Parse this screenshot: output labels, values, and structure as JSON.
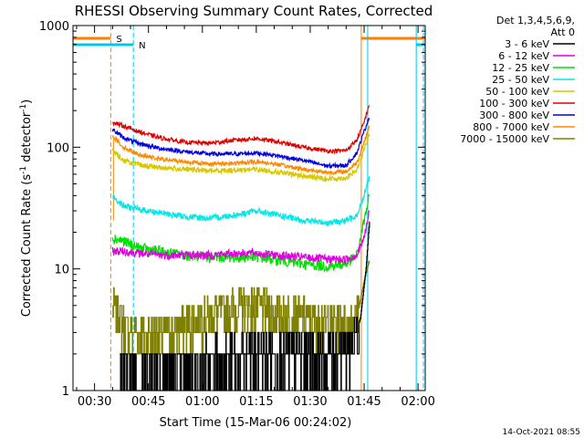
{
  "chart_data": {
    "type": "line",
    "title": "RHESSI Observing Summary Count Rates, Corrected",
    "xlabel": "Start Time (15-Mar-06 00:24:02)",
    "ylabel": "Corrected Count Rate (s",
    "ylabel_sup": "-1",
    "ylabel_tail": " detector",
    "ylabel_sup2": "-1",
    "ylabel_end": ")",
    "x_range_minutes": [
      24.0,
      122.0
    ],
    "x_ticks": [
      {
        "minute": 30,
        "label": "00:30"
      },
      {
        "minute": 45,
        "label": "00:45"
      },
      {
        "minute": 60,
        "label": "01:00"
      },
      {
        "minute": 75,
        "label": "01:15"
      },
      {
        "minute": 90,
        "label": "01:30"
      },
      {
        "minute": 105,
        "label": "01:45"
      },
      {
        "minute": 120,
        "label": "02:00"
      }
    ],
    "y_scale": "log",
    "ylim": [
      1,
      1000
    ],
    "y_ticks": [
      {
        "value": 1,
        "label": "1"
      },
      {
        "value": 10,
        "label": "10"
      },
      {
        "value": 100,
        "label": "100"
      },
      {
        "value": 1000,
        "label": "1000"
      }
    ],
    "legend": {
      "placement": "right",
      "header": [
        "Det 1,3,4,5,6,9,",
        "Att 0"
      ],
      "entries": [
        {
          "label": "3 - 6 keV",
          "color": "#000000"
        },
        {
          "label": "6 - 12 keV",
          "color": "#e000e0"
        },
        {
          "label": "12 - 25 keV",
          "color": "#00e000"
        },
        {
          "label": "25 - 50 keV",
          "color": "#00e8e8"
        },
        {
          "label": "50 - 100 keV",
          "color": "#d8c800"
        },
        {
          "label": "100 - 300 keV",
          "color": "#e00000"
        },
        {
          "label": "300 - 800 keV",
          "color": "#0000e0"
        },
        {
          "label": "800 - 7000 keV",
          "color": "#ff8800"
        },
        {
          "label": "7000 - 15000 keV",
          "color": "#808000"
        }
      ]
    },
    "flags": [
      {
        "label": "S",
        "color": "#ff8000",
        "style": "dashed",
        "start_minute": 34.5,
        "end_minute": 104.2
      },
      {
        "label": "N",
        "color": "#00c8e8",
        "style": "dashed",
        "start_minute": 40.8,
        "end_minute": 119.5
      }
    ],
    "data_interval_minutes": [
      35.0,
      106.5
    ],
    "series": [
      {
        "name": "100 - 300 keV",
        "color": "#e00000",
        "kind": "smooth",
        "noise": 0.04,
        "points": [
          [
            35,
            160
          ],
          [
            38,
            150
          ],
          [
            42,
            135
          ],
          [
            48,
            120
          ],
          [
            55,
            110
          ],
          [
            62,
            108
          ],
          [
            70,
            115
          ],
          [
            75,
            118
          ],
          [
            80,
            112
          ],
          [
            88,
            100
          ],
          [
            95,
            93
          ],
          [
            100,
            94
          ],
          [
            103,
            115
          ],
          [
            105,
            160
          ],
          [
            106.5,
            230
          ]
        ]
      },
      {
        "name": "300 - 800 keV",
        "color": "#0000e0",
        "kind": "smooth",
        "noise": 0.04,
        "points": [
          [
            35,
            140
          ],
          [
            38,
            120
          ],
          [
            42,
            108
          ],
          [
            48,
            98
          ],
          [
            55,
            92
          ],
          [
            62,
            88
          ],
          [
            70,
            88
          ],
          [
            75,
            90
          ],
          [
            80,
            86
          ],
          [
            88,
            78
          ],
          [
            95,
            70
          ],
          [
            100,
            71
          ],
          [
            103,
            90
          ],
          [
            105,
            135
          ],
          [
            106.5,
            180
          ]
        ]
      },
      {
        "name": "800 - 7000 keV",
        "color": "#ff8800",
        "kind": "smooth",
        "noise": 0.04,
        "points": [
          [
            35,
            125
          ],
          [
            38,
            100
          ],
          [
            42,
            88
          ],
          [
            48,
            80
          ],
          [
            55,
            76
          ],
          [
            62,
            73
          ],
          [
            70,
            74
          ],
          [
            75,
            76
          ],
          [
            80,
            73
          ],
          [
            88,
            66
          ],
          [
            95,
            62
          ],
          [
            100,
            63
          ],
          [
            103,
            75
          ],
          [
            105,
            110
          ],
          [
            106.5,
            150
          ]
        ]
      },
      {
        "name": "50 - 100 keV",
        "color": "#d8c800",
        "kind": "smooth",
        "noise": 0.05,
        "points": [
          [
            35,
            95
          ],
          [
            38,
            78
          ],
          [
            42,
            72
          ],
          [
            48,
            68
          ],
          [
            55,
            66
          ],
          [
            62,
            64
          ],
          [
            70,
            65
          ],
          [
            75,
            66
          ],
          [
            80,
            63
          ],
          [
            88,
            58
          ],
          [
            95,
            55
          ],
          [
            100,
            56
          ],
          [
            103,
            65
          ],
          [
            105,
            95
          ],
          [
            106.5,
            130
          ]
        ]
      },
      {
        "name": "25 - 50 keV",
        "color": "#00e8e8",
        "kind": "smooth",
        "noise": 0.06,
        "points": [
          [
            35,
            40
          ],
          [
            38,
            33
          ],
          [
            42,
            31
          ],
          [
            48,
            29
          ],
          [
            55,
            27
          ],
          [
            62,
            26
          ],
          [
            70,
            28
          ],
          [
            75,
            30
          ],
          [
            80,
            28
          ],
          [
            88,
            25
          ],
          [
            95,
            24
          ],
          [
            100,
            25
          ],
          [
            103,
            28
          ],
          [
            105,
            40
          ],
          [
            106.5,
            58
          ]
        ]
      },
      {
        "name": "6 - 12 keV",
        "color": "#e000e0",
        "kind": "smooth",
        "noise": 0.08,
        "points": [
          [
            35,
            14
          ],
          [
            38,
            14
          ],
          [
            42,
            13.5
          ],
          [
            48,
            13
          ],
          [
            55,
            13
          ],
          [
            62,
            13
          ],
          [
            70,
            13.5
          ],
          [
            75,
            13.5
          ],
          [
            80,
            13
          ],
          [
            88,
            12.5
          ],
          [
            95,
            12
          ],
          [
            100,
            12
          ],
          [
            103,
            13
          ],
          [
            105,
            18
          ],
          [
            106.5,
            30
          ]
        ]
      },
      {
        "name": "12 - 25 keV",
        "color": "#00e000",
        "kind": "smooth",
        "noise": 0.1,
        "points": [
          [
            35,
            18
          ],
          [
            38,
            17
          ],
          [
            42,
            15
          ],
          [
            48,
            14
          ],
          [
            55,
            13
          ],
          [
            62,
            12.5
          ],
          [
            70,
            12.5
          ],
          [
            75,
            12.5
          ],
          [
            80,
            12
          ],
          [
            88,
            11
          ],
          [
            95,
            10.5
          ],
          [
            100,
            11
          ],
          [
            103,
            13
          ],
          [
            105,
            25
          ],
          [
            106.5,
            40
          ]
        ]
      },
      {
        "name": "7000 - 15000 keV",
        "color": "#808000",
        "kind": "steps",
        "levels": [
          1,
          2,
          3,
          4,
          5,
          6
        ],
        "base": 3.2,
        "amp": 2.2,
        "points": [
          [
            35,
            5
          ],
          [
            37,
            4
          ],
          [
            40,
            3
          ],
          [
            45,
            3
          ],
          [
            50,
            3
          ],
          [
            55,
            3.5
          ],
          [
            60,
            4
          ],
          [
            65,
            4.5
          ],
          [
            70,
            5
          ],
          [
            75,
            5
          ],
          [
            80,
            4.5
          ],
          [
            85,
            4.2
          ],
          [
            90,
            4
          ],
          [
            95,
            3.8
          ],
          [
            100,
            3.8
          ],
          [
            103,
            4
          ],
          [
            105,
            8
          ],
          [
            106.5,
            12
          ]
        ]
      },
      {
        "name": "3 - 6 keV",
        "color": "#000000",
        "kind": "steps",
        "levels": [
          1,
          2,
          3
        ],
        "base": 1.6,
        "amp": 1.4,
        "points": [
          [
            37,
            1.5
          ],
          [
            45,
            1.5
          ],
          [
            55,
            1.6
          ],
          [
            65,
            1.8
          ],
          [
            75,
            2
          ],
          [
            85,
            2
          ],
          [
            95,
            2
          ],
          [
            102,
            2.5
          ],
          [
            104,
            4
          ],
          [
            105.5,
            10
          ],
          [
            106.5,
            25
          ]
        ]
      }
    ],
    "timestamp": "14-Oct-2021 08:55"
  }
}
